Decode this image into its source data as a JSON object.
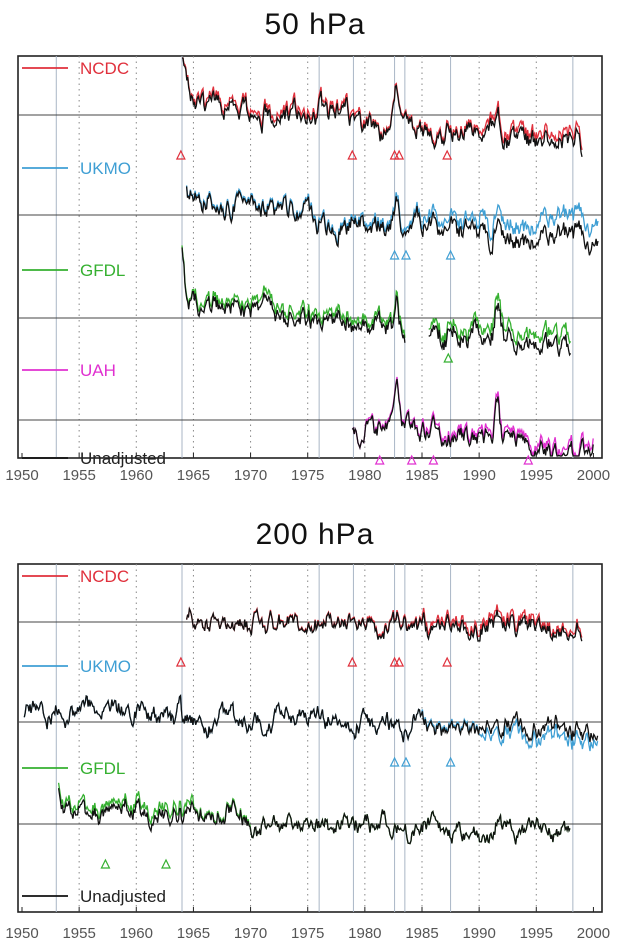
{
  "chart_data": [
    {
      "type": "line",
      "title": "50 hPa",
      "xlim": [
        1950,
        2000.4
      ],
      "x_ticks": [
        "1950",
        "1955",
        "1960",
        "1965",
        "1970",
        "1975",
        "1980",
        "1985",
        "1990",
        "1995",
        "2000"
      ],
      "reference_years": [
        1953,
        1964,
        1976,
        1979,
        1982.6,
        1983.5,
        1987.5,
        1998.2
      ],
      "grid": "dotted vertical lines every 5 years; solid vertical lines at reference years",
      "rows": [
        {
          "label": "NCDC",
          "color": "#e0303c",
          "start": 1964.0,
          "end": 1999.0,
          "bump": 1.0,
          "flare": 1.6,
          "gaps": [],
          "adj": [
            0,
            0.1,
            0.2,
            0.25,
            0.2,
            0.1,
            0.15,
            0.3,
            0.35,
            0.4
          ]
        },
        {
          "label": "UKMO",
          "color": "#3f9fd4",
          "start": 1964.4,
          "end": 2000.4,
          "bump": 0.8,
          "flare": 0.4,
          "gaps": [],
          "adj": [
            0,
            0.05,
            0.1,
            0.1,
            0.15,
            0.2,
            0.4,
            0.7,
            0.9,
            1.0
          ]
        },
        {
          "label": "GFDL",
          "color": "#35b030",
          "start": 1964.0,
          "end": 1998.0,
          "bump": 0.9,
          "flare": 1.3,
          "gaps": [
            [
              1983.5,
              1985.5
            ]
          ],
          "adj": [
            0,
            0.1,
            0.25,
            0.35,
            0.3,
            0.25,
            0.35,
            0.5,
            0.6,
            0.6
          ]
        },
        {
          "label": "UAH",
          "color": "#e030d0",
          "start": 1978.9,
          "end": 2000.0,
          "bump": 0.9,
          "flare": 0,
          "gaps": [],
          "adj": [
            0,
            0,
            0,
            0,
            0,
            0.1,
            0.2,
            0.25,
            0.3,
            0.3
          ]
        }
      ],
      "markers": [
        {
          "row": 0,
          "years": [
            1963.9,
            1978.9,
            1982.6,
            1983.0,
            1987.2
          ],
          "color": "#e0303c"
        },
        {
          "row": 1,
          "years": [
            1982.6,
            1983.6,
            1987.5
          ],
          "color": "#3f9fd4"
        },
        {
          "row": 2,
          "years": [
            1987.3
          ],
          "color": "#35b030"
        },
        {
          "row": 3,
          "years": [
            1981.3,
            1984.1,
            1986.0,
            1994.3
          ],
          "color": "#e030d0"
        }
      ],
      "unadjusted_label": "Unadjusted",
      "unadjusted_color": "#111111"
    },
    {
      "type": "line",
      "title": "200 hPa",
      "xlim": [
        1950,
        2000.4
      ],
      "x_ticks": [
        "1950",
        "1955",
        "1960",
        "1965",
        "1970",
        "1975",
        "1980",
        "1985",
        "1990",
        "1995",
        "2000"
      ],
      "reference_years": [
        1953,
        1964,
        1976,
        1979,
        1982.6,
        1983.5,
        1987.5,
        1998.2
      ],
      "grid": "dotted vertical lines every 5 years; solid vertical lines at reference years",
      "rows": [
        {
          "label": "NCDC",
          "color": "#e0303c",
          "start": 1964.4,
          "end": 1999.0,
          "bump": 0.3,
          "flare": 0,
          "gaps": [],
          "adj": [
            0,
            0,
            0,
            0.05,
            0.05,
            0.1,
            0.25,
            0.3,
            0.2,
            0.3
          ]
        },
        {
          "label": "UKMO",
          "color": "#3f9fd4",
          "start": 1950.2,
          "end": 2000.4,
          "bump": 0.3,
          "flare": 0,
          "gaps": [],
          "adj": [
            0,
            0,
            0,
            0,
            0,
            0,
            0.1,
            -0.4,
            -0.5,
            -0.3
          ]
        },
        {
          "label": "GFDL",
          "color": "#35b030",
          "start": 1953.2,
          "end": 1998.0,
          "bump": 0.3,
          "flare": 0.8,
          "gaps": [],
          "adj": [
            0.3,
            0.4,
            0.1,
            0,
            0,
            0,
            0,
            0,
            0,
            0
          ]
        },
        {
          "label": "Unadjusted",
          "color": "#111111",
          "start": 0,
          "end": 0,
          "bump": 0,
          "flare": 0,
          "gaps": [],
          "adj": []
        }
      ],
      "markers": [
        {
          "row": 0,
          "years": [
            1963.9,
            1978.9,
            1982.6,
            1983.0,
            1987.2
          ],
          "color": "#e0303c"
        },
        {
          "row": 1,
          "years": [
            1982.6,
            1983.6,
            1987.5
          ],
          "color": "#3f9fd4"
        },
        {
          "row": 2,
          "years": [
            1957.3,
            1962.6
          ],
          "color": "#35b030"
        }
      ],
      "unadjusted_label": "Unadjusted",
      "unadjusted_color": "#111111"
    }
  ]
}
